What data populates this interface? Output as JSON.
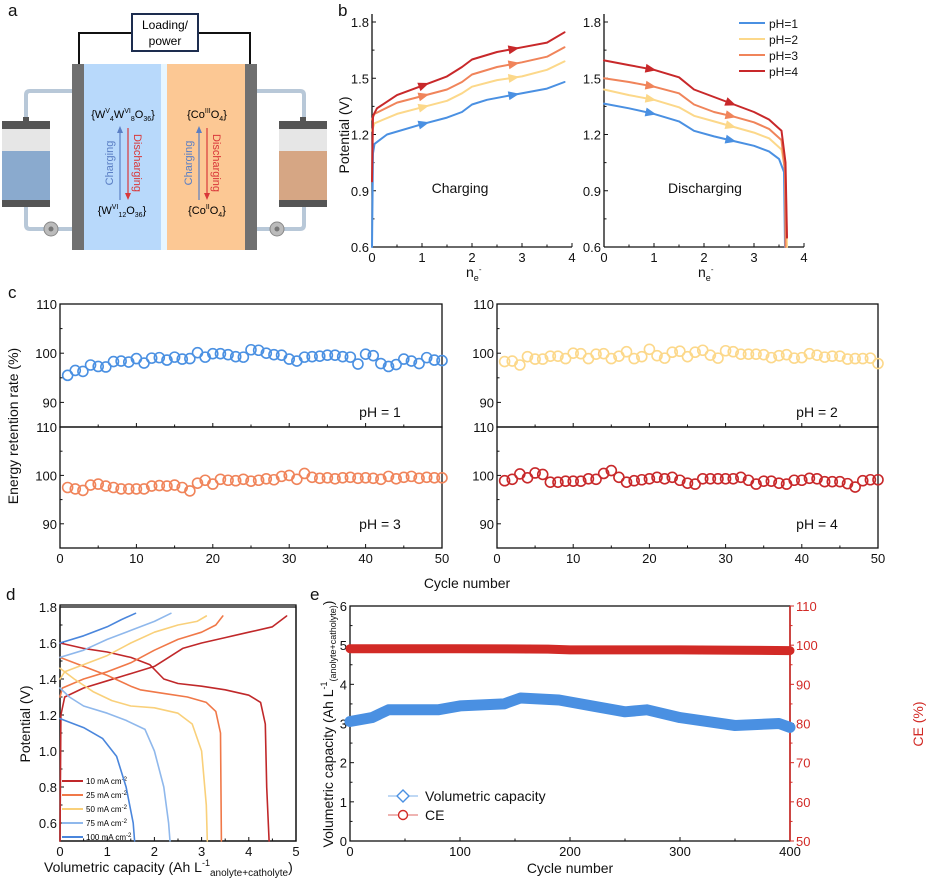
{
  "panel_letters": {
    "a": "a",
    "b": "b",
    "c": "c",
    "d": "d",
    "e": "e"
  },
  "panel_a": {
    "load_box": [
      "Loading/",
      "power"
    ],
    "anolyte_oxidized": [
      "{W",
      "V",
      "4",
      "W",
      "VI",
      "8",
      "O",
      "36",
      "}"
    ],
    "anolyte_reduced": [
      "{W",
      "VI",
      "12",
      "O",
      "36",
      "}"
    ],
    "catholyte_oxidized": [
      "{Co",
      "III",
      "O",
      "4",
      "}"
    ],
    "catholyte_reduced": [
      "{Co",
      "II",
      "O",
      "4",
      "}"
    ],
    "charging": "Charging",
    "discharging": "Discharging",
    "colors": {
      "anolyte": "#b8d9fb",
      "catholyte": "#fcc894",
      "electrode": "#707070",
      "charging": "#5b7fc4",
      "discharging": "#d9383a"
    }
  },
  "chart_data": [
    {
      "id": "b-charging",
      "type": "line",
      "title": "Charging",
      "xlabel": [
        "n",
        "e",
        "-"
      ],
      "ylabel": "Potential (V)",
      "xlim": [
        0,
        4
      ],
      "ylim": [
        0.6,
        1.8
      ],
      "xticks": [
        0,
        1,
        2,
        3,
        4
      ],
      "yticks": [
        0.6,
        0.9,
        1.2,
        1.5,
        1.8
      ],
      "series": [
        {
          "name": "pH=1",
          "color": "#4a90e2",
          "x": [
            0,
            0.02,
            0.05,
            0.3,
            1,
            1.5,
            1.8,
            2,
            2.3,
            2.8,
            3.5,
            3.85
          ],
          "y": [
            0.6,
            1.1,
            1.15,
            1.2,
            1.255,
            1.29,
            1.32,
            1.36,
            1.385,
            1.41,
            1.445,
            1.48
          ]
        },
        {
          "name": "pH=2",
          "color": "#fcd88a",
          "x": [
            0,
            0.05,
            0.5,
            1,
            1.5,
            1.8,
            2,
            2.5,
            3,
            3.5,
            3.85
          ],
          "y": [
            1.22,
            1.26,
            1.31,
            1.345,
            1.38,
            1.42,
            1.455,
            1.49,
            1.51,
            1.545,
            1.59
          ]
        },
        {
          "name": "pH=3",
          "color": "#f0845a",
          "x": [
            0,
            0.05,
            0.5,
            1,
            1.5,
            1.8,
            2,
            2.5,
            3,
            3.5,
            3.85
          ],
          "y": [
            1.28,
            1.31,
            1.37,
            1.405,
            1.44,
            1.48,
            1.52,
            1.56,
            1.585,
            1.615,
            1.665
          ]
        },
        {
          "name": "pH=4",
          "color": "#c8282a",
          "x": [
            0,
            0.02,
            0.1,
            0.5,
            1,
            1.5,
            1.8,
            2,
            2.5,
            3,
            3.5,
            3.85
          ],
          "y": [
            0.95,
            1.3,
            1.34,
            1.41,
            1.46,
            1.51,
            1.56,
            1.6,
            1.64,
            1.665,
            1.69,
            1.745
          ]
        }
      ]
    },
    {
      "id": "b-discharging",
      "type": "line",
      "title": "Discharging",
      "xlabel": [
        "n",
        "e",
        "-"
      ],
      "ylabel": "",
      "xlim": [
        0,
        4
      ],
      "ylim": [
        0.6,
        1.8
      ],
      "xticks": [
        0,
        1,
        2,
        3,
        4
      ],
      "yticks": [
        0.6,
        0.9,
        1.2,
        1.5,
        1.8
      ],
      "legend": "top-right",
      "series": [
        {
          "name": "pH=1",
          "color": "#4a90e2",
          "x": [
            0,
            0.5,
            1,
            1.5,
            1.8,
            2.2,
            2.6,
            3,
            3.3,
            3.5,
            3.6,
            3.62
          ],
          "y": [
            1.365,
            1.34,
            1.31,
            1.27,
            1.22,
            1.19,
            1.165,
            1.14,
            1.11,
            1.07,
            1.0,
            0.6
          ]
        },
        {
          "name": "pH=2",
          "color": "#fcd88a",
          "x": [
            0,
            0.5,
            1,
            1.5,
            1.8,
            2.2,
            2.6,
            3,
            3.3,
            3.55,
            3.63,
            3.66
          ],
          "y": [
            1.44,
            1.41,
            1.385,
            1.345,
            1.3,
            1.27,
            1.24,
            1.21,
            1.18,
            1.12,
            1.0,
            0.6
          ]
        },
        {
          "name": "pH=3",
          "color": "#f0845a",
          "x": [
            0,
            0.5,
            1,
            1.5,
            1.8,
            2.2,
            2.6,
            3,
            3.3,
            3.55,
            3.62,
            3.63
          ],
          "y": [
            1.5,
            1.48,
            1.455,
            1.42,
            1.36,
            1.32,
            1.295,
            1.265,
            1.23,
            1.17,
            1.0,
            0.6
          ]
        },
        {
          "name": "pH=4",
          "color": "#c8282a",
          "x": [
            0,
            0.5,
            1,
            1.5,
            1.8,
            2.2,
            2.6,
            3,
            3.3,
            3.55,
            3.63,
            3.66
          ],
          "y": [
            1.595,
            1.57,
            1.545,
            1.505,
            1.44,
            1.4,
            1.36,
            1.32,
            1.28,
            1.22,
            1.05,
            0.65
          ]
        }
      ]
    },
    {
      "id": "c",
      "type": "scatter",
      "xlabel": "Cycle number",
      "ylabel": "Energy retention rate (%)",
      "xlim": [
        0,
        50
      ],
      "ylim": [
        85,
        110
      ],
      "xticks": [
        0,
        10,
        20,
        30,
        40,
        50
      ],
      "yticks": [
        90,
        100,
        110
      ],
      "series": [
        {
          "name": "pH = 1",
          "color": "#4a90e2",
          "values": [
            95.5,
            96.5,
            96.3,
            97.6,
            97.3,
            97.2,
            98.3,
            98.4,
            98.2,
            98.9,
            98.0,
            99.0,
            99.1,
            98.6,
            99.2,
            98.8,
            98.9,
            100.1,
            99.2,
            99.9,
            99.9,
            99.7,
            99.3,
            99.2,
            100.7,
            100.6,
            100.0,
            99.7,
            99.6,
            98.8,
            98.4,
            99.2,
            99.3,
            99.4,
            99.6,
            99.6,
            99.3,
            99.2,
            97.8,
            99.8,
            99.5,
            97.9,
            97.3,
            97.7,
            98.8,
            98.4,
            97.9,
            99.1,
            98.6,
            98.5
          ]
        },
        {
          "name": "pH = 2",
          "color": "#fcd88a",
          "values": [
            98.3,
            98.4,
            97.6,
            99.3,
            98.8,
            98.8,
            99.4,
            99.4,
            98.9,
            100.0,
            99.9,
            98.9,
            99.8,
            99.9,
            98.9,
            99.4,
            100.3,
            98.9,
            99.3,
            100.8,
            99.5,
            99.0,
            100.2,
            100.4,
            99.3,
            100.2,
            100.6,
            99.6,
            99.0,
            100.5,
            100.3,
            99.8,
            99.8,
            99.8,
            99.7,
            99.1,
            99.5,
            99.7,
            99.0,
            99.1,
            99.9,
            99.6,
            99.2,
            99.4,
            99.4,
            98.8,
            98.9,
            98.9,
            99.0,
            97.9
          ]
        },
        {
          "name": "pH = 3",
          "color": "#f0845a",
          "values": [
            97.5,
            97.2,
            96.9,
            98.0,
            98.2,
            97.8,
            97.5,
            97.2,
            97.2,
            97.2,
            97.2,
            97.8,
            97.9,
            97.8,
            98.0,
            97.5,
            96.8,
            98.4,
            99.0,
            98.2,
            99.2,
            99.0,
            98.9,
            99.2,
            98.8,
            99.0,
            99.3,
            99.1,
            99.8,
            100.0,
            99.2,
            100.4,
            99.6,
            99.4,
            99.5,
            99.3,
            99.5,
            99.6,
            99.4,
            99.5,
            99.4,
            99.2,
            99.8,
            99.3,
            99.6,
            99.8,
            99.4,
            99.6,
            99.5,
            99.5
          ]
        },
        {
          "name": "pH = 4",
          "color": "#c8282a",
          "values": [
            98.9,
            99.2,
            100.3,
            99.5,
            100.5,
            100.2,
            98.6,
            98.6,
            98.8,
            98.8,
            98.8,
            99.3,
            99.2,
            100.4,
            101.0,
            99.6,
            98.6,
            98.9,
            99.1,
            99.3,
            99.6,
            99.3,
            99.6,
            99.0,
            98.4,
            98.2,
            99.3,
            99.3,
            99.3,
            99.3,
            99.3,
            99.6,
            99.0,
            98.2,
            98.8,
            98.8,
            98.4,
            98.2,
            99.0,
            99.0,
            99.4,
            99.3,
            98.7,
            98.7,
            98.7,
            98.3,
            97.6,
            98.9,
            99.1,
            99.1
          ]
        }
      ]
    },
    {
      "id": "d",
      "type": "line",
      "xlabel": [
        "Volumetric capacity (Ah L",
        "-1",
        "anolyte+catholyte",
        ")"
      ],
      "ylabel": "Potential (V)",
      "xlim": [
        0,
        5
      ],
      "ylim": [
        0.5,
        1.8
      ],
      "xticks": [
        0,
        1,
        2,
        3,
        4,
        5
      ],
      "yticks": [
        0.6,
        0.8,
        1.0,
        1.2,
        1.4,
        1.6,
        1.8
      ],
      "legend": "bottom-left",
      "series": [
        {
          "name": [
            "10 mA cm",
            "-2"
          ],
          "color": "#c0282a",
          "charge": {
            "x": [
              0,
              0.02,
              0.1,
              0.5,
              1,
              1.5,
              2,
              2.3,
              2.6,
              3.0,
              3.5,
              4,
              4.5,
              4.8
            ],
            "y": [
              0.5,
              1.2,
              1.3,
              1.35,
              1.39,
              1.43,
              1.47,
              1.52,
              1.57,
              1.6,
              1.63,
              1.66,
              1.69,
              1.75
            ]
          },
          "discharge": {
            "x": [
              0,
              0.5,
              1,
              1.5,
              1.9,
              2.2,
              2.5,
              3,
              3.5,
              4,
              4.25,
              4.35,
              4.38,
              4.43
            ],
            "y": [
              1.6,
              1.57,
              1.55,
              1.52,
              1.48,
              1.4,
              1.375,
              1.36,
              1.34,
              1.31,
              1.27,
              1.15,
              0.8,
              0.5
            ]
          }
        },
        {
          "name": [
            "25 mA cm",
            "-2"
          ],
          "color": "#f07848",
          "charge": {
            "x": [
              0,
              0.05,
              0.5,
              1,
              1.5,
              2,
              2.5,
              3,
              3.3,
              3.45
            ],
            "y": [
              1.3,
              1.35,
              1.4,
              1.44,
              1.49,
              1.56,
              1.62,
              1.66,
              1.7,
              1.75
            ]
          },
          "discharge": {
            "x": [
              0,
              0.5,
              1,
              1.5,
              1.7,
              2.2,
              2.7,
              3.1,
              3.3,
              3.4,
              3.42
            ],
            "y": [
              1.52,
              1.47,
              1.42,
              1.36,
              1.34,
              1.32,
              1.3,
              1.27,
              1.22,
              1.1,
              0.5
            ]
          }
        },
        {
          "name": [
            "50 mA cm",
            "-2"
          ],
          "color": "#f9d07a",
          "charge": {
            "x": [
              0,
              0.1,
              0.5,
              1,
              1.5,
              2,
              2.5,
              2.9,
              3.1
            ],
            "y": [
              1.4,
              1.44,
              1.48,
              1.53,
              1.6,
              1.66,
              1.7,
              1.72,
              1.75
            ]
          },
          "discharge": {
            "x": [
              0,
              0.3,
              0.7,
              1.1,
              1.5,
              2,
              2.5,
              2.8,
              3.0,
              3.1,
              3.12
            ],
            "y": [
              1.46,
              1.4,
              1.33,
              1.28,
              1.25,
              1.24,
              1.21,
              1.15,
              1.0,
              0.7,
              0.5
            ]
          }
        },
        {
          "name": [
            "75 mA cm",
            "-2"
          ],
          "color": "#8fb8ec",
          "charge": {
            "x": [
              0,
              0.5,
              1,
              1.5,
              2,
              2.35
            ],
            "y": [
              1.52,
              1.56,
              1.62,
              1.67,
              1.72,
              1.765
            ]
          },
          "discharge": {
            "x": [
              0,
              0.2,
              0.5,
              1,
              1.4,
              1.8,
              2.0,
              2.2,
              2.3,
              2.33
            ],
            "y": [
              1.35,
              1.3,
              1.25,
              1.21,
              1.17,
              1.12,
              1.0,
              0.8,
              0.6,
              0.5
            ]
          }
        },
        {
          "name": [
            "100 mA cm",
            "-2"
          ],
          "color": "#4a86dc",
          "charge": {
            "x": [
              0,
              0.5,
              1,
              1.3,
              1.6
            ],
            "y": [
              1.6,
              1.64,
              1.69,
              1.73,
              1.765
            ]
          },
          "discharge": {
            "x": [
              0,
              0.5,
              0.9,
              1.2,
              1.4,
              1.55,
              1.58
            ],
            "y": [
              1.18,
              1.13,
              1.07,
              0.97,
              0.8,
              0.6,
              0.5
            ]
          }
        }
      ]
    },
    {
      "id": "e",
      "type": "line",
      "xlabel": "Cycle number",
      "ylabel": [
        "Volumetric capacity (Ah L",
        "-1",
        "(anolyte+catholyte)",
        ")"
      ],
      "ylabel_right": "CE (%)",
      "xlim": [
        0,
        400
      ],
      "ylim": [
        0,
        6
      ],
      "ylim_right": [
        50,
        110
      ],
      "xticks": [
        0,
        100,
        200,
        300,
        400
      ],
      "yticks": [
        0,
        1,
        2,
        3,
        4,
        5,
        6
      ],
      "yticks_right": [
        50,
        60,
        70,
        80,
        90,
        100,
        110
      ],
      "legend": "bottom-left",
      "series": [
        {
          "name": "Volumetric capacity",
          "axis": "left",
          "color": "#4a90e2",
          "marker": "diamond",
          "x": [
            0,
            20,
            35,
            80,
            100,
            140,
            155,
            190,
            220,
            250,
            270,
            300,
            350,
            390,
            400
          ],
          "y": [
            3.05,
            3.15,
            3.35,
            3.35,
            3.45,
            3.5,
            3.65,
            3.6,
            3.45,
            3.3,
            3.35,
            3.15,
            2.95,
            3.0,
            2.9
          ]
        },
        {
          "name": "CE",
          "axis": "right",
          "color": "#d22a26",
          "marker": "circle",
          "x": [
            0,
            100,
            180,
            200,
            300,
            400
          ],
          "y": [
            99.1,
            99.1,
            99.0,
            98.8,
            98.8,
            98.6
          ]
        }
      ]
    }
  ]
}
